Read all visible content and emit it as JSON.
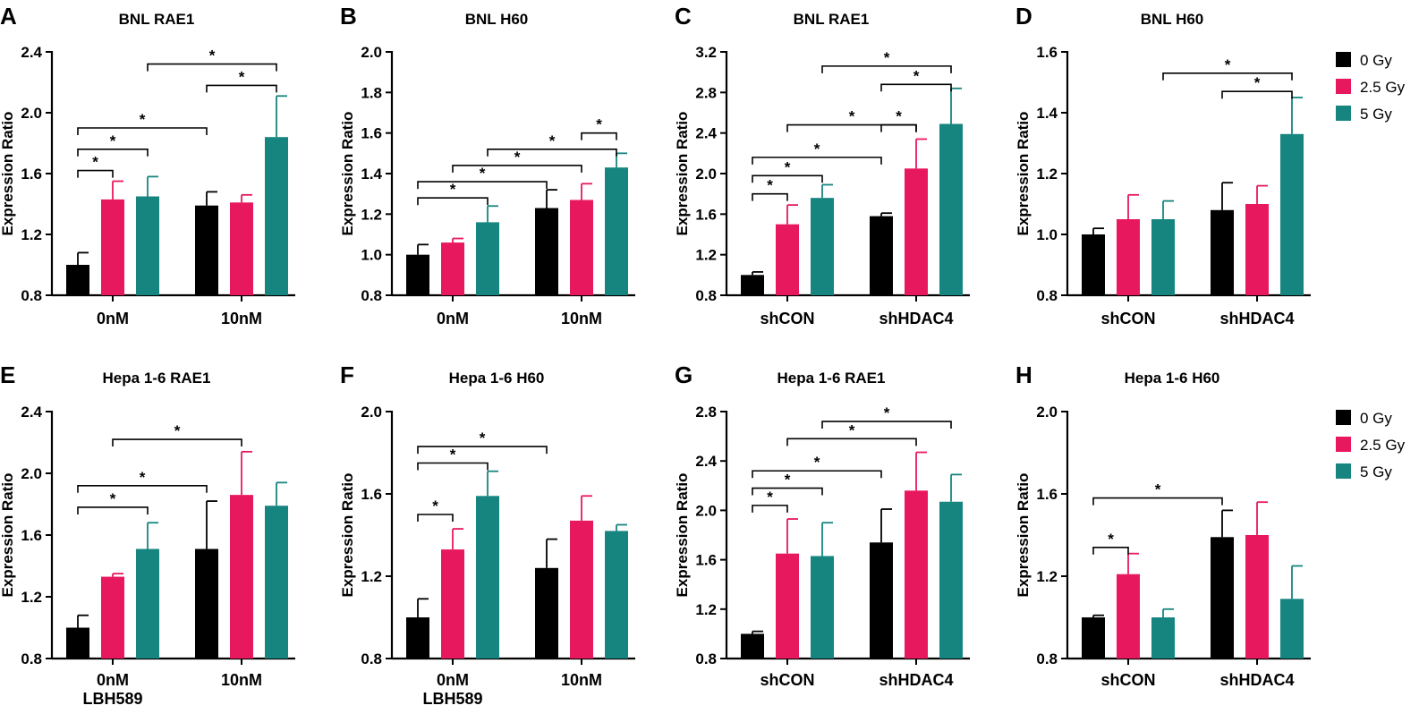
{
  "colors": {
    "0 Gy": "#000000",
    "2.5 Gy": "#e8185f",
    "5 Gy": "#168580"
  },
  "legend": {
    "labels": [
      "0 Gy",
      "2.5 Gy",
      "5 Gy"
    ]
  },
  "chart_data": [
    {
      "panel": "A",
      "type": "bar",
      "title": "BNL RAE1",
      "ylabel": "Expression Ratio",
      "xlabel": "",
      "categories": [
        "0nM",
        "10nM"
      ],
      "ylim": [
        0.8,
        2.4
      ],
      "yticks": [
        "0.8",
        "1.2",
        "1.6",
        "2.0",
        "2.4"
      ],
      "series": [
        {
          "name": "0 Gy",
          "values": [
            1.0,
            1.39
          ],
          "errors": [
            0.08,
            0.09
          ]
        },
        {
          "name": "2.5 Gy",
          "values": [
            1.43,
            1.41
          ],
          "errors": [
            0.12,
            0.05
          ]
        },
        {
          "name": "5 Gy",
          "values": [
            1.45,
            1.84
          ],
          "errors": [
            0.13,
            0.27
          ]
        }
      ],
      "significance": [
        {
          "from": [
            0,
            0
          ],
          "to": [
            0,
            1
          ],
          "y": 1.62,
          "label": "*"
        },
        {
          "from": [
            0,
            0
          ],
          "to": [
            0,
            2
          ],
          "y": 1.76,
          "label": "*"
        },
        {
          "from": [
            0,
            0
          ],
          "to": [
            1,
            0
          ],
          "y": 1.9,
          "label": "*"
        },
        {
          "from": [
            1,
            0
          ],
          "to": [
            1,
            2
          ],
          "y": 2.18,
          "label": "*"
        },
        {
          "from": [
            0,
            2
          ],
          "to": [
            1,
            2
          ],
          "y": 2.32,
          "label": "*"
        }
      ]
    },
    {
      "panel": "B",
      "type": "bar",
      "title": "BNL H60",
      "ylabel": "Expression Ratio",
      "xlabel": "",
      "categories": [
        "0nM",
        "10nM"
      ],
      "ylim": [
        0.8,
        2.0
      ],
      "yticks": [
        "0.8",
        "1.0",
        "1.2",
        "1.4",
        "1.6",
        "1.8",
        "2.0"
      ],
      "series": [
        {
          "name": "0 Gy",
          "values": [
            1.0,
            1.23
          ],
          "errors": [
            0.05,
            0.09
          ]
        },
        {
          "name": "2.5 Gy",
          "values": [
            1.06,
            1.27
          ],
          "errors": [
            0.02,
            0.08
          ]
        },
        {
          "name": "5 Gy",
          "values": [
            1.16,
            1.43
          ],
          "errors": [
            0.08,
            0.07
          ]
        }
      ],
      "significance": [
        {
          "from": [
            0,
            0
          ],
          "to": [
            0,
            2
          ],
          "y": 1.28,
          "label": "*"
        },
        {
          "from": [
            0,
            0
          ],
          "to": [
            1,
            0
          ],
          "y": 1.36,
          "label": "*"
        },
        {
          "from": [
            0,
            1
          ],
          "to": [
            1,
            1
          ],
          "y": 1.44,
          "label": "*"
        },
        {
          "from": [
            0,
            2
          ],
          "to": [
            1,
            2
          ],
          "y": 1.52,
          "label": "*"
        },
        {
          "from": [
            1,
            1
          ],
          "to": [
            1,
            2
          ],
          "y": 1.6,
          "label": "*"
        }
      ]
    },
    {
      "panel": "C",
      "type": "bar",
      "title": "BNL RAE1",
      "ylabel": "Expression Ratio",
      "xlabel": "",
      "categories": [
        "shCON",
        "shHDAC4"
      ],
      "ylim": [
        0.8,
        3.2
      ],
      "yticks": [
        "0.8",
        "1.2",
        "1.6",
        "2.0",
        "2.4",
        "2.8",
        "3.2"
      ],
      "series": [
        {
          "name": "0 Gy",
          "values": [
            1.0,
            1.58
          ],
          "errors": [
            0.03,
            0.03
          ]
        },
        {
          "name": "2.5 Gy",
          "values": [
            1.5,
            2.05
          ],
          "errors": [
            0.19,
            0.29
          ]
        },
        {
          "name": "5 Gy",
          "values": [
            1.76,
            2.49
          ],
          "errors": [
            0.13,
            0.35
          ]
        }
      ],
      "significance": [
        {
          "from": [
            0,
            0
          ],
          "to": [
            0,
            1
          ],
          "y": 1.8,
          "label": "*"
        },
        {
          "from": [
            0,
            0
          ],
          "to": [
            0,
            2
          ],
          "y": 1.98,
          "label": "*"
        },
        {
          "from": [
            0,
            0
          ],
          "to": [
            1,
            0
          ],
          "y": 2.16,
          "label": "*"
        },
        {
          "from": [
            0,
            1
          ],
          "to": [
            1,
            1
          ],
          "y": 2.48,
          "label": "*"
        },
        {
          "from": [
            1,
            0
          ],
          "to": [
            1,
            1
          ],
          "y": 2.48,
          "label": "*"
        },
        {
          "from": [
            1,
            0
          ],
          "to": [
            1,
            2
          ],
          "y": 2.88,
          "label": "*"
        },
        {
          "from": [
            0,
            2
          ],
          "to": [
            1,
            2
          ],
          "y": 3.06,
          "label": "*"
        }
      ]
    },
    {
      "panel": "D",
      "type": "bar",
      "title": "BNL H60",
      "ylabel": "Expression Ratio",
      "xlabel": "",
      "categories": [
        "shCON",
        "shHDAC4"
      ],
      "ylim": [
        0.8,
        1.6
      ],
      "yticks": [
        "0.8",
        "1.0",
        "1.2",
        "1.4",
        "1.6"
      ],
      "series": [
        {
          "name": "0 Gy",
          "values": [
            1.0,
            1.08
          ],
          "errors": [
            0.02,
            0.09
          ]
        },
        {
          "name": "2.5 Gy",
          "values": [
            1.05,
            1.1
          ],
          "errors": [
            0.08,
            0.06
          ]
        },
        {
          "name": "5 Gy",
          "values": [
            1.05,
            1.33
          ],
          "errors": [
            0.06,
            0.12
          ]
        }
      ],
      "significance": [
        {
          "from": [
            1,
            0
          ],
          "to": [
            1,
            2
          ],
          "y": 1.47,
          "label": "*"
        },
        {
          "from": [
            0,
            2
          ],
          "to": [
            1,
            2
          ],
          "y": 1.53,
          "label": "*"
        }
      ]
    },
    {
      "panel": "E",
      "type": "bar",
      "title": "Hepa 1-6 RAE1",
      "ylabel": "Expression Ratio",
      "xlabel": "LBH589",
      "categories": [
        "0nM",
        "10nM"
      ],
      "ylim": [
        0.8,
        2.4
      ],
      "yticks": [
        "0.8",
        "1.2",
        "1.6",
        "2.0",
        "2.4"
      ],
      "series": [
        {
          "name": "0 Gy",
          "values": [
            1.0,
            1.51
          ],
          "errors": [
            0.08,
            0.31
          ]
        },
        {
          "name": "2.5 Gy",
          "values": [
            1.33,
            1.86
          ],
          "errors": [
            0.02,
            0.28
          ]
        },
        {
          "name": "5 Gy",
          "values": [
            1.51,
            1.79
          ],
          "errors": [
            0.17,
            0.15
          ]
        }
      ],
      "significance": [
        {
          "from": [
            0,
            0
          ],
          "to": [
            0,
            2
          ],
          "y": 1.78,
          "label": "*"
        },
        {
          "from": [
            0,
            0
          ],
          "to": [
            1,
            0
          ],
          "y": 1.92,
          "label": "*"
        },
        {
          "from": [
            0,
            1
          ],
          "to": [
            1,
            1
          ],
          "y": 2.22,
          "label": "*"
        }
      ]
    },
    {
      "panel": "F",
      "type": "bar",
      "title": "Hepa 1-6 H60",
      "ylabel": "Expression Ratio",
      "xlabel": "LBH589",
      "categories": [
        "0nM",
        "10nM"
      ],
      "ylim": [
        0.8,
        2.0
      ],
      "yticks": [
        "0.8",
        "1.2",
        "1.6",
        "2.0"
      ],
      "series": [
        {
          "name": "0 Gy",
          "values": [
            1.0,
            1.24
          ],
          "errors": [
            0.09,
            0.14
          ]
        },
        {
          "name": "2.5 Gy",
          "values": [
            1.33,
            1.47
          ],
          "errors": [
            0.1,
            0.12
          ]
        },
        {
          "name": "5 Gy",
          "values": [
            1.59,
            1.42
          ],
          "errors": [
            0.12,
            0.03
          ]
        }
      ],
      "significance": [
        {
          "from": [
            0,
            0
          ],
          "to": [
            0,
            1
          ],
          "y": 1.5,
          "label": "*"
        },
        {
          "from": [
            0,
            0
          ],
          "to": [
            0,
            2
          ],
          "y": 1.75,
          "label": "*"
        },
        {
          "from": [
            0,
            0
          ],
          "to": [
            1,
            0
          ],
          "y": 1.83,
          "label": "*"
        }
      ]
    },
    {
      "panel": "G",
      "type": "bar",
      "title": "Hepa 1-6 RAE1",
      "ylabel": "Expression Ratio",
      "xlabel": "",
      "categories": [
        "shCON",
        "shHDAC4"
      ],
      "ylim": [
        0.8,
        2.8
      ],
      "yticks": [
        "0.8",
        "1.2",
        "1.6",
        "2.0",
        "2.4",
        "2.8"
      ],
      "series": [
        {
          "name": "0 Gy",
          "values": [
            1.0,
            1.74
          ],
          "errors": [
            0.02,
            0.27
          ]
        },
        {
          "name": "2.5 Gy",
          "values": [
            1.65,
            2.16
          ],
          "errors": [
            0.28,
            0.31
          ]
        },
        {
          "name": "5 Gy",
          "values": [
            1.63,
            2.07
          ],
          "errors": [
            0.27,
            0.22
          ]
        }
      ],
      "significance": [
        {
          "from": [
            0,
            0
          ],
          "to": [
            0,
            1
          ],
          "y": 2.04,
          "label": "*"
        },
        {
          "from": [
            0,
            0
          ],
          "to": [
            0,
            2
          ],
          "y": 2.18,
          "label": "*"
        },
        {
          "from": [
            0,
            0
          ],
          "to": [
            1,
            0
          ],
          "y": 2.32,
          "label": "*"
        },
        {
          "from": [
            0,
            1
          ],
          "to": [
            1,
            1
          ],
          "y": 2.58,
          "label": "*"
        },
        {
          "from": [
            0,
            2
          ],
          "to": [
            1,
            2
          ],
          "y": 2.72,
          "label": "*"
        }
      ]
    },
    {
      "panel": "H",
      "type": "bar",
      "title": "Hepa 1-6 H60",
      "ylabel": "Expression Ratio",
      "xlabel": "",
      "categories": [
        "shCON",
        "shHDAC4"
      ],
      "ylim": [
        0.8,
        2.0
      ],
      "yticks": [
        "0.8",
        "1.2",
        "1.6",
        "2.0"
      ],
      "series": [
        {
          "name": "0 Gy",
          "values": [
            1.0,
            1.39
          ],
          "errors": [
            0.01,
            0.13
          ]
        },
        {
          "name": "2.5 Gy",
          "values": [
            1.21,
            1.4
          ],
          "errors": [
            0.1,
            0.16
          ]
        },
        {
          "name": "5 Gy",
          "values": [
            1.0,
            1.09
          ],
          "errors": [
            0.04,
            0.16
          ]
        }
      ],
      "significance": [
        {
          "from": [
            0,
            0
          ],
          "to": [
            0,
            1
          ],
          "y": 1.34,
          "label": "*"
        },
        {
          "from": [
            0,
            0
          ],
          "to": [
            1,
            0
          ],
          "y": 1.58,
          "label": "*"
        }
      ]
    }
  ]
}
